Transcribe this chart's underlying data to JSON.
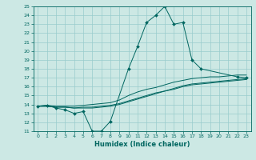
{
  "title": "",
  "xlabel": "Humidex (Indice chaleur)",
  "background_color": "#cce8e4",
  "line_color": "#006660",
  "grid_color": "#99cccc",
  "xlim": [
    -0.5,
    23.5
  ],
  "ylim": [
    11,
    25
  ],
  "xticks": [
    0,
    1,
    2,
    3,
    4,
    5,
    6,
    7,
    8,
    9,
    10,
    11,
    12,
    13,
    14,
    15,
    16,
    17,
    18,
    19,
    20,
    21,
    22,
    23
  ],
  "yticks": [
    11,
    12,
    13,
    14,
    15,
    16,
    17,
    18,
    19,
    20,
    21,
    22,
    23,
    24,
    25
  ],
  "lines": [
    {
      "x": [
        0,
        1,
        2,
        3,
        4,
        5,
        6,
        7,
        8,
        10,
        11,
        12,
        13,
        14,
        15,
        16,
        17,
        18,
        22,
        23
      ],
      "y": [
        13.8,
        13.9,
        13.6,
        13.4,
        13.0,
        13.2,
        11.0,
        11.0,
        12.1,
        18.0,
        20.5,
        23.2,
        24.0,
        25.0,
        23.0,
        23.2,
        19.0,
        18.0,
        17.1,
        17.0
      ],
      "marker": true
    },
    {
      "x": [
        0,
        1,
        2,
        3,
        4,
        5,
        6,
        7,
        8,
        9,
        10,
        11,
        12,
        13,
        14,
        15,
        16,
        17,
        18,
        19,
        20,
        21,
        22,
        23
      ],
      "y": [
        13.8,
        13.9,
        13.8,
        13.8,
        13.8,
        13.9,
        14.0,
        14.1,
        14.2,
        14.5,
        15.0,
        15.4,
        15.7,
        15.9,
        16.2,
        16.5,
        16.7,
        16.9,
        17.0,
        17.1,
        17.1,
        17.2,
        17.3,
        17.3
      ],
      "marker": false
    },
    {
      "x": [
        0,
        1,
        2,
        3,
        4,
        5,
        6,
        7,
        8,
        9,
        10,
        11,
        12,
        13,
        14,
        15,
        16,
        17,
        18,
        19,
        20,
        21,
        22,
        23
      ],
      "y": [
        13.8,
        13.8,
        13.7,
        13.7,
        13.6,
        13.7,
        13.7,
        13.8,
        13.9,
        14.1,
        14.4,
        14.7,
        15.0,
        15.3,
        15.5,
        15.8,
        16.1,
        16.3,
        16.4,
        16.5,
        16.6,
        16.7,
        16.8,
        16.9
      ],
      "marker": false
    },
    {
      "x": [
        0,
        1,
        2,
        3,
        4,
        5,
        6,
        7,
        8,
        9,
        10,
        11,
        12,
        13,
        14,
        15,
        16,
        17,
        18,
        19,
        20,
        21,
        22,
        23
      ],
      "y": [
        13.8,
        13.8,
        13.7,
        13.7,
        13.6,
        13.6,
        13.6,
        13.7,
        13.8,
        14.0,
        14.3,
        14.6,
        14.9,
        15.2,
        15.5,
        15.7,
        16.0,
        16.2,
        16.3,
        16.4,
        16.5,
        16.6,
        16.7,
        16.8
      ],
      "marker": false
    }
  ]
}
